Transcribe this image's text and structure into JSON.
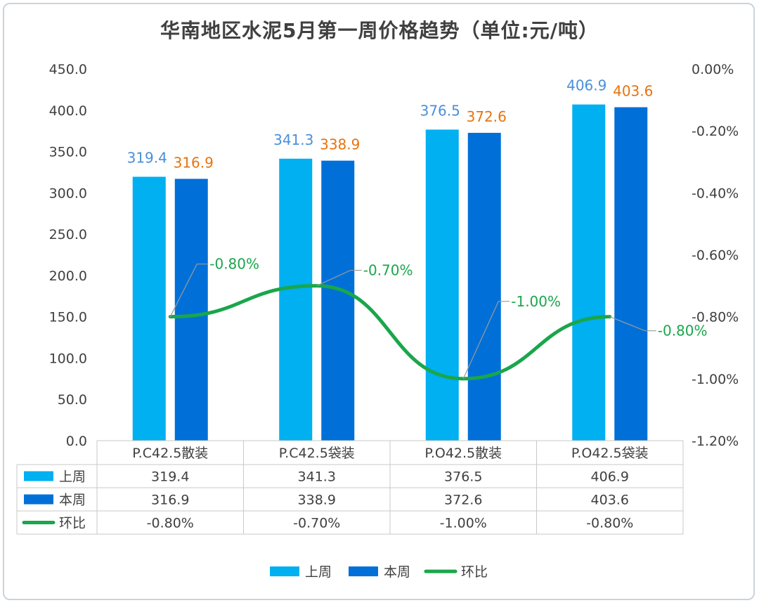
{
  "title": "华南地区水泥5月第一周价格趋势（单位:元/吨）",
  "colors": {
    "prev": "#00b0f0",
    "curr": "#0070d8",
    "mom": "#1aa64b",
    "prev_label": "#4a90d9",
    "curr_label": "#e8730c"
  },
  "chart_data": {
    "type": "bar",
    "categories": [
      "P.C42.5散装",
      "P.C42.5袋装",
      "P.O42.5散装",
      "P.O42.5袋装"
    ],
    "series": [
      {
        "name": "上周",
        "type": "bar",
        "values": [
          319.4,
          341.3,
          376.5,
          406.9
        ],
        "labels": [
          "319.4",
          "341.3",
          "376.5",
          "406.9"
        ]
      },
      {
        "name": "本周",
        "type": "bar",
        "values": [
          316.9,
          338.9,
          372.6,
          403.6
        ],
        "labels": [
          "316.9",
          "338.9",
          "372.6",
          "403.6"
        ]
      },
      {
        "name": "环比",
        "type": "line",
        "axis": "right",
        "smooth": true,
        "values": [
          -0.8,
          -0.7,
          -1.0,
          -0.8
        ],
        "labels": [
          "-0.80%",
          "-0.70%",
          "-1.00%",
          "-0.80%"
        ]
      }
    ],
    "ylim_left": [
      0,
      450
    ],
    "ylim_right": [
      -1.2,
      0
    ],
    "left_ticks": [
      "0.0",
      "50.0",
      "100.0",
      "150.0",
      "200.0",
      "250.0",
      "300.0",
      "350.0",
      "400.0",
      "450.0"
    ],
    "right_ticks": [
      "-1.20%",
      "-1.00%",
      "-0.80%",
      "-0.60%",
      "-0.40%",
      "-0.20%",
      "0.00%"
    ],
    "legend_position": "bottom",
    "data_table": true
  },
  "table": {
    "rows": [
      {
        "name": "上周",
        "cells": [
          "319.4",
          "341.3",
          "376.5",
          "406.9"
        ]
      },
      {
        "name": "本周",
        "cells": [
          "316.9",
          "338.9",
          "372.6",
          "403.6"
        ]
      },
      {
        "name": "环比",
        "cells": [
          "-0.80%",
          "-0.70%",
          "-1.00%",
          "-0.80%"
        ]
      }
    ]
  },
  "legend": [
    "上周",
    "本周",
    "环比"
  ]
}
